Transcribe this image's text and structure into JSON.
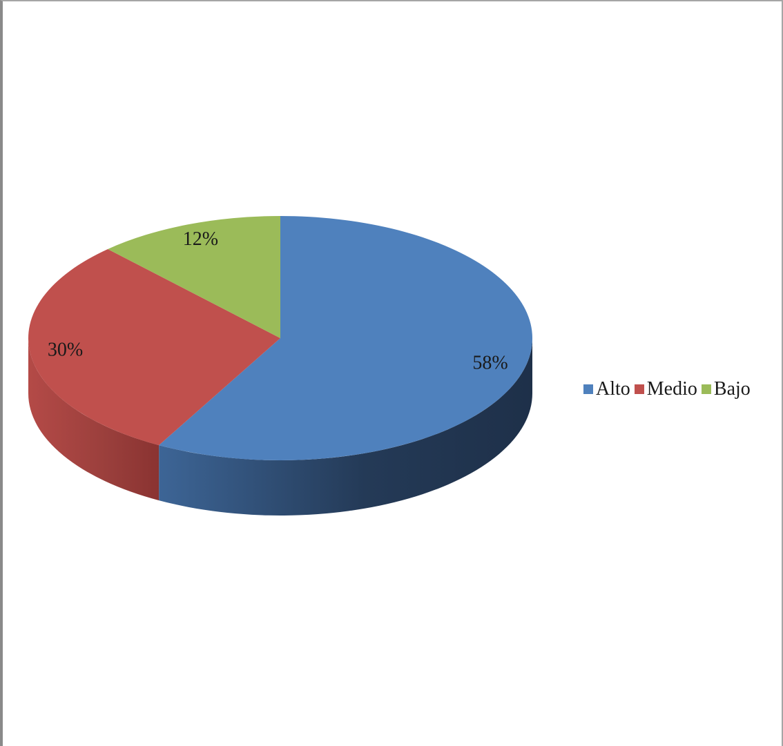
{
  "chart_data": {
    "type": "pie",
    "three_d": true,
    "start": "12 o'clock, clockwise",
    "slices": [
      {
        "label": "Alto",
        "value": 58,
        "display": "58%",
        "color": "#4F81BD"
      },
      {
        "label": "Medio",
        "value": 30,
        "display": "30%",
        "color": "#C0504D"
      },
      {
        "label": "Bajo",
        "value": 12,
        "display": "12%",
        "color": "#9BBB59"
      }
    ],
    "legend": {
      "position": "right",
      "entries": [
        "Alto",
        "Medio",
        "Bajo"
      ]
    }
  }
}
